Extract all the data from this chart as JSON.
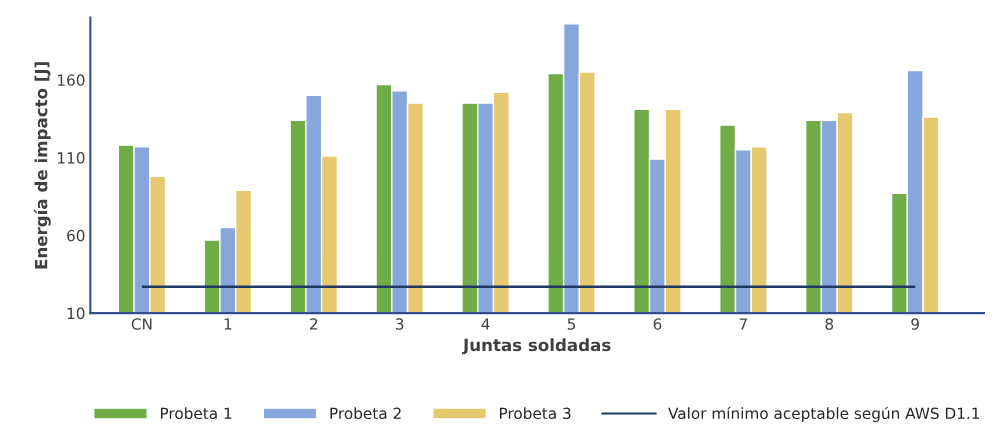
{
  "chart_data": {
    "type": "bar",
    "xlabel": "Juntas soldadas",
    "ylabel": "Energía de impacto [J]",
    "categories": [
      "CN",
      "1",
      "2",
      "3",
      "4",
      "5",
      "6",
      "7",
      "8",
      "9"
    ],
    "series": [
      {
        "name": "Probeta 1",
        "color": "#70ad47",
        "values": [
          118,
          57,
          134,
          157,
          145,
          164,
          141,
          131,
          134,
          87
        ]
      },
      {
        "name": "Probeta 2",
        "color": "#86a6dc",
        "values": [
          117,
          65,
          150,
          153,
          145,
          196,
          109,
          115,
          134,
          166
        ]
      },
      {
        "name": "Probeta 3",
        "color": "#e6c86e",
        "values": [
          98,
          89,
          111,
          145,
          152,
          165,
          141,
          117,
          139,
          136
        ]
      }
    ],
    "ref_lines": [
      {
        "axis": "y",
        "value": 27,
        "label": "Valor mínimo aceptable según AWS D1.1",
        "color": "#203864",
        "line_style": "solid"
      }
    ],
    "ylim": [
      10,
      200
    ],
    "yticks": [
      10,
      60,
      110,
      160
    ],
    "grid": false,
    "legend": "bottom"
  }
}
